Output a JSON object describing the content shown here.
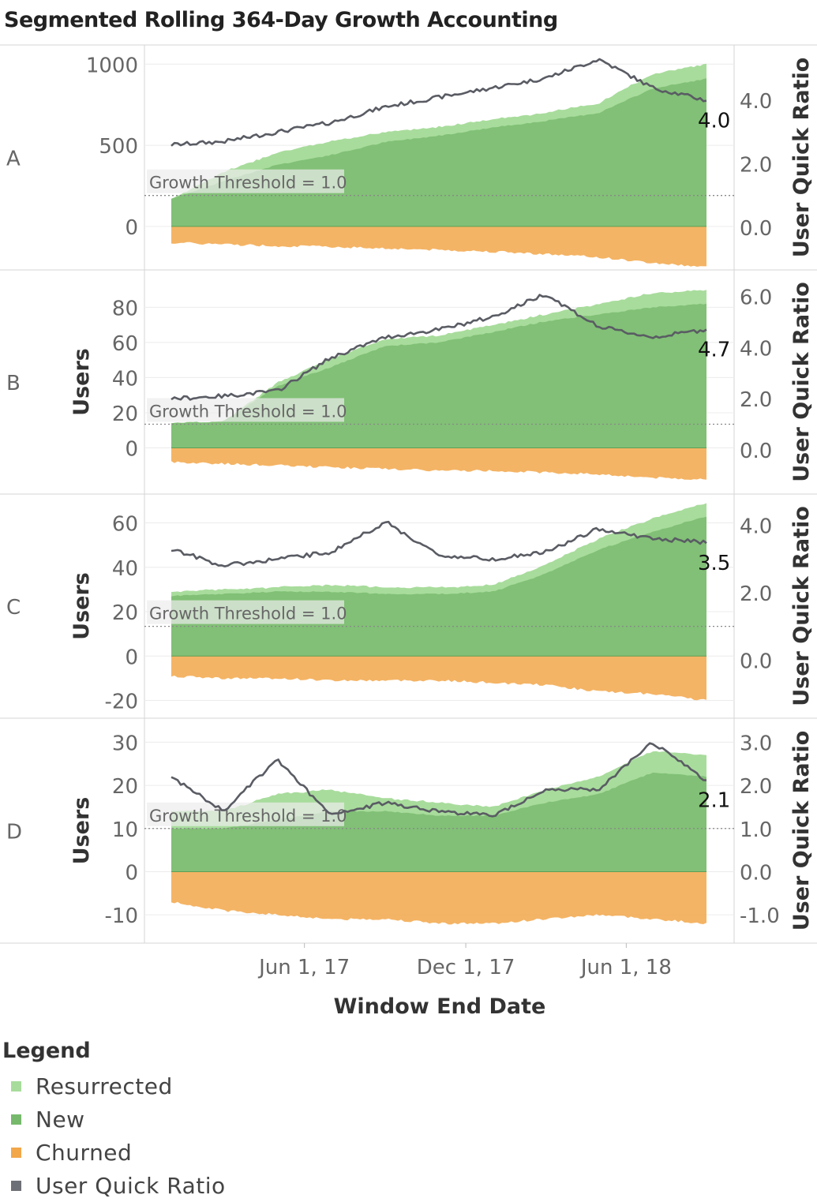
{
  "title": "Segmented Rolling 364-Day Growth Accounting",
  "colors": {
    "resurrected": "#a8dc9c",
    "new": "#76b96c",
    "churned": "#f2a74a",
    "quick_ratio": "#5a5c64",
    "threshold_label_bg": "#ececec"
  },
  "legend": {
    "title": "Legend",
    "items": [
      {
        "label": "Resurrected",
        "color": "#a8dc9c"
      },
      {
        "label": "New",
        "color": "#76b96c"
      },
      {
        "label": "Churned",
        "color": "#f2a74a"
      },
      {
        "label": "User Quick Ratio",
        "color": "#6e7077"
      }
    ]
  },
  "chart_data": {
    "type": "area",
    "title": "Segmented Rolling 364-Day Growth Accounting",
    "xlabel": "Window End Date",
    "x_ticks": [
      "Jun 1, 17",
      "Dec 1, 17",
      "Jun 1, 18"
    ],
    "x_range": [
      "2017-01-01",
      "2018-08-31"
    ],
    "threshold_label": "Growth Threshold = 1.0",
    "threshold": 1.0,
    "y2label": "User Quick Ratio",
    "grid": true,
    "legend_position": "bottom-left",
    "panels": [
      {
        "segment": "A",
        "ylabel": "",
        "ylim": [
          -200,
          1050
        ],
        "y_ticks": [
          "1000",
          "500",
          "0"
        ],
        "y_tick_values": [
          1000,
          500,
          0
        ],
        "y2lim": [
          -1.0,
          5.4
        ],
        "y2_ticks": [
          "4.0",
          "2.0",
          "0.0"
        ],
        "y2_tick_values": [
          4.0,
          2.0,
          0.0
        ],
        "final_ratio_label": "4.0",
        "dates": [
          "2017-01-01",
          "2017-03-01",
          "2017-05-01",
          "2017-07-01",
          "2017-09-01",
          "2017-11-01",
          "2018-01-01",
          "2018-03-01",
          "2018-05-01",
          "2018-07-01",
          "2018-08-31"
        ],
        "resurrected": [
          0,
          55,
          75,
          85,
          60,
          55,
          50,
          50,
          60,
          90,
          90
        ],
        "new": [
          170,
          280,
          380,
          440,
          520,
          560,
          610,
          650,
          700,
          850,
          910
        ],
        "churned": [
          -100,
          -110,
          -120,
          -125,
          -135,
          -145,
          -155,
          -170,
          -190,
          -225,
          -250
        ],
        "quick_ratio": [
          2.6,
          2.7,
          3.0,
          3.3,
          3.8,
          4.1,
          4.4,
          4.7,
          5.3,
          4.4,
          4.0
        ]
      },
      {
        "segment": "B",
        "ylabel": "Users",
        "ylim": [
          -20,
          95
        ],
        "y_ticks": [
          "80",
          "60",
          "40",
          "20",
          "0"
        ],
        "y_tick_values": [
          80,
          60,
          40,
          20,
          0
        ],
        "y2lim": [
          -1.3,
          6.6
        ],
        "y2_ticks": [
          "6.0",
          "4.0",
          "2.0",
          "0.0"
        ],
        "y2_tick_values": [
          6.0,
          4.0,
          2.0,
          0.0
        ],
        "final_ratio_label": "4.7",
        "dates": [
          "2017-01-01",
          "2017-03-01",
          "2017-05-01",
          "2017-07-01",
          "2017-09-01",
          "2017-11-01",
          "2018-01-01",
          "2018-03-01",
          "2018-05-01",
          "2018-07-01",
          "2018-08-31"
        ],
        "resurrected": [
          0,
          0,
          2,
          5,
          4,
          4,
          4,
          4,
          6,
          8,
          8
        ],
        "new": [
          14,
          15,
          35,
          46,
          58,
          60,
          66,
          72,
          76,
          80,
          82
        ],
        "churned": [
          -8,
          -9,
          -10,
          -11,
          -12,
          -13,
          -13,
          -14,
          -15,
          -17,
          -18
        ],
        "quick_ratio": [
          2.0,
          2.1,
          2.3,
          3.6,
          4.4,
          4.7,
          5.2,
          6.1,
          4.8,
          4.4,
          4.7
        ]
      },
      {
        "segment": "C",
        "ylabel": "Users",
        "ylim": [
          -23,
          68
        ],
        "y_ticks": [
          "60",
          "40",
          "20",
          "0",
          "-20"
        ],
        "y_tick_values": [
          60,
          40,
          20,
          0,
          -20
        ],
        "y2lim": [
          -1.4,
          4.6
        ],
        "y2_ticks": [
          "4.0",
          "2.0",
          "0.0"
        ],
        "y2_tick_values": [
          4.0,
          2.0,
          0.0
        ],
        "final_ratio_label": "3.5",
        "dates": [
          "2017-01-01",
          "2017-03-01",
          "2017-05-01",
          "2017-07-01",
          "2017-09-01",
          "2017-11-01",
          "2018-01-01",
          "2018-03-01",
          "2018-05-01",
          "2018-07-01",
          "2018-08-31"
        ],
        "resurrected": [
          2,
          2,
          2,
          3,
          3,
          3,
          3,
          4,
          5,
          6,
          6
        ],
        "new": [
          27,
          28,
          29,
          29,
          28,
          28,
          29,
          37,
          48,
          56,
          63
        ],
        "churned": [
          -9,
          -10,
          -10,
          -11,
          -11,
          -11,
          -12,
          -13,
          -16,
          -17,
          -20
        ],
        "quick_ratio": [
          3.3,
          2.8,
          3.0,
          3.2,
          4.1,
          3.1,
          3.0,
          3.2,
          3.9,
          3.6,
          3.5
        ]
      },
      {
        "segment": "D",
        "ylabel": "Users",
        "ylim": [
          -14,
          33
        ],
        "y_ticks": [
          "30",
          "20",
          "10",
          "0",
          "-10"
        ],
        "y_tick_values": [
          30,
          20,
          10,
          0,
          -10
        ],
        "y2lim": [
          -1.4,
          3.3
        ],
        "y2_ticks": [
          "3.0",
          "2.0",
          "1.0",
          "0.0",
          "-1.0"
        ],
        "y2_tick_values": [
          3.0,
          2.0,
          1.0,
          0.0,
          -1.0
        ],
        "final_ratio_label": "2.1",
        "dates": [
          "2017-01-01",
          "2017-03-01",
          "2017-05-01",
          "2017-07-01",
          "2017-09-01",
          "2017-11-01",
          "2018-01-01",
          "2018-03-01",
          "2018-05-01",
          "2018-07-01",
          "2018-08-31"
        ],
        "resurrected": [
          4,
          4,
          6,
          5,
          3,
          3,
          2,
          3,
          4,
          5,
          5
        ],
        "new": [
          10,
          10,
          12,
          14,
          14,
          13,
          13,
          16,
          18,
          23,
          22
        ],
        "churned": [
          -7,
          -9,
          -10,
          -11,
          -11,
          -12,
          -12,
          -11,
          -10,
          -11,
          -12
        ],
        "quick_ratio": [
          2.2,
          1.4,
          2.6,
          1.3,
          1.6,
          1.4,
          1.3,
          1.9,
          1.9,
          3.0,
          2.1
        ]
      }
    ]
  }
}
